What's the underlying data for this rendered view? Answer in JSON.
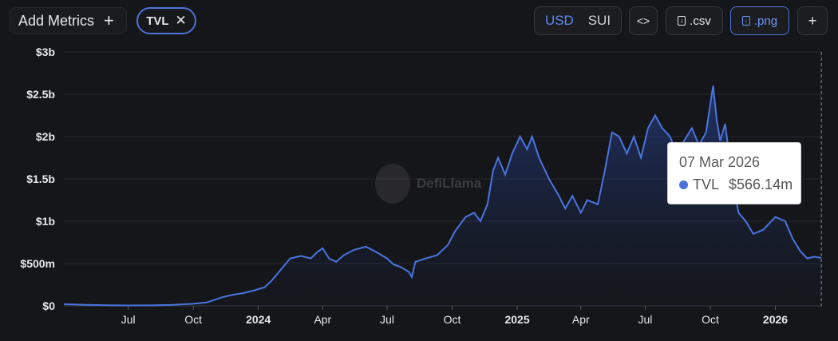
{
  "toolbar": {
    "add_metrics_label": "Add Metrics",
    "add_icon": "plus-icon",
    "metric_chip_label": "TVL",
    "metric_chip_close_icon": "close-icon",
    "currency_options": [
      "USD",
      "SUI"
    ],
    "currency_selected": "USD",
    "embed_icon": "code-icon",
    "csv_label": ".csv",
    "png_label": ".png",
    "download_icon": "file-download-icon",
    "add_chart_icon": "plus-icon",
    "accent_color": "#4f72d9"
  },
  "watermark": {
    "name": "DefiLlama"
  },
  "tooltip": {
    "date": "07 Mar 2026",
    "series": "TVL",
    "value": "$566.14m"
  },
  "chart_data": {
    "type": "area",
    "line_color": "#4a74e0",
    "grid": true,
    "x_tick_labels": [
      "Jul",
      "Oct",
      "2024",
      "Apr",
      "Jul",
      "Oct",
      "2025",
      "Apr",
      "Jul",
      "Oct",
      "2026"
    ],
    "x_tick_bold": [
      false,
      false,
      true,
      false,
      false,
      false,
      true,
      false,
      false,
      false,
      true
    ],
    "y_tick_labels": [
      "$0",
      "$500m",
      "$1b",
      "$1.5b",
      "$2b",
      "$2.5b",
      "$3b"
    ],
    "ylim": [
      0,
      3000000000
    ],
    "x_range": [
      "2023-04-01",
      "2026-03-08"
    ],
    "series": [
      {
        "name": "TVL",
        "points": [
          [
            "2023-04-01",
            20000000
          ],
          [
            "2023-05-01",
            12000000
          ],
          [
            "2023-06-01",
            8000000
          ],
          [
            "2023-07-01",
            5000000
          ],
          [
            "2023-08-01",
            6000000
          ],
          [
            "2023-09-01",
            12000000
          ],
          [
            "2023-10-01",
            25000000
          ],
          [
            "2023-10-20",
            40000000
          ],
          [
            "2023-11-10",
            100000000
          ],
          [
            "2023-11-25",
            130000000
          ],
          [
            "2023-12-10",
            150000000
          ],
          [
            "2023-12-25",
            180000000
          ],
          [
            "2024-01-10",
            220000000
          ],
          [
            "2024-01-20",
            300000000
          ],
          [
            "2024-02-01",
            420000000
          ],
          [
            "2024-02-15",
            560000000
          ],
          [
            "2024-03-01",
            590000000
          ],
          [
            "2024-03-15",
            560000000
          ],
          [
            "2024-03-25",
            640000000
          ],
          [
            "2024-04-01",
            680000000
          ],
          [
            "2024-04-10",
            560000000
          ],
          [
            "2024-04-20",
            520000000
          ],
          [
            "2024-05-01",
            600000000
          ],
          [
            "2024-05-15",
            660000000
          ],
          [
            "2024-06-01",
            700000000
          ],
          [
            "2024-06-15",
            640000000
          ],
          [
            "2024-07-01",
            560000000
          ],
          [
            "2024-07-10",
            490000000
          ],
          [
            "2024-07-20",
            460000000
          ],
          [
            "2024-08-01",
            400000000
          ],
          [
            "2024-08-05",
            340000000
          ],
          [
            "2024-08-10",
            520000000
          ],
          [
            "2024-08-25",
            560000000
          ],
          [
            "2024-09-10",
            600000000
          ],
          [
            "2024-09-25",
            720000000
          ],
          [
            "2024-10-05",
            880000000
          ],
          [
            "2024-10-20",
            1050000000
          ],
          [
            "2024-11-01",
            1100000000
          ],
          [
            "2024-11-10",
            1000000000
          ],
          [
            "2024-11-20",
            1200000000
          ],
          [
            "2024-11-28",
            1600000000
          ],
          [
            "2024-12-05",
            1750000000
          ],
          [
            "2024-12-15",
            1550000000
          ],
          [
            "2024-12-25",
            1800000000
          ],
          [
            "2025-01-05",
            2000000000
          ],
          [
            "2025-01-15",
            1850000000
          ],
          [
            "2025-01-22",
            2000000000
          ],
          [
            "2025-02-01",
            1750000000
          ],
          [
            "2025-02-15",
            1500000000
          ],
          [
            "2025-03-01",
            1300000000
          ],
          [
            "2025-03-10",
            1150000000
          ],
          [
            "2025-03-20",
            1300000000
          ],
          [
            "2025-04-01",
            1100000000
          ],
          [
            "2025-04-10",
            1250000000
          ],
          [
            "2025-04-25",
            1200000000
          ],
          [
            "2025-05-05",
            1600000000
          ],
          [
            "2025-05-15",
            2050000000
          ],
          [
            "2025-05-25",
            2000000000
          ],
          [
            "2025-06-05",
            1800000000
          ],
          [
            "2025-06-15",
            2000000000
          ],
          [
            "2025-06-25",
            1750000000
          ],
          [
            "2025-07-05",
            2100000000
          ],
          [
            "2025-07-15",
            2250000000
          ],
          [
            "2025-07-25",
            2100000000
          ],
          [
            "2025-08-05",
            2000000000
          ],
          [
            "2025-08-15",
            1800000000
          ],
          [
            "2025-08-25",
            1950000000
          ],
          [
            "2025-09-05",
            2100000000
          ],
          [
            "2025-09-15",
            1900000000
          ],
          [
            "2025-09-25",
            2050000000
          ],
          [
            "2025-10-05",
            2600000000
          ],
          [
            "2025-10-10",
            2200000000
          ],
          [
            "2025-10-15",
            1950000000
          ],
          [
            "2025-10-22",
            2150000000
          ],
          [
            "2025-11-01",
            1500000000
          ],
          [
            "2025-11-10",
            1100000000
          ],
          [
            "2025-11-20",
            1000000000
          ],
          [
            "2025-12-01",
            850000000
          ],
          [
            "2025-12-15",
            900000000
          ],
          [
            "2026-01-01",
            1050000000
          ],
          [
            "2026-01-15",
            1000000000
          ],
          [
            "2026-01-25",
            800000000
          ],
          [
            "2026-02-05",
            650000000
          ],
          [
            "2026-02-15",
            560000000
          ],
          [
            "2026-02-25",
            580000000
          ],
          [
            "2026-03-07",
            566140000
          ]
        ]
      }
    ]
  }
}
